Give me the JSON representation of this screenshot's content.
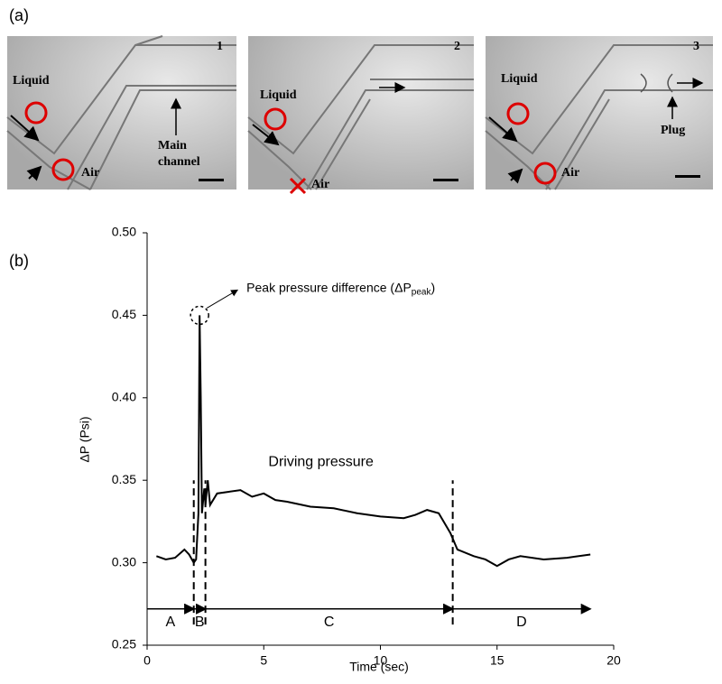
{
  "panel_a": {
    "label": "(a)",
    "images": [
      {
        "number": "1",
        "labels": [
          "Liquid",
          "Air",
          "Main",
          "channel"
        ]
      },
      {
        "number": "2",
        "labels": [
          "Liquid",
          "Air"
        ]
      },
      {
        "number": "3",
        "labels": [
          "Liquid",
          "Air",
          "Plug"
        ]
      }
    ]
  },
  "chart_data": {
    "type": "line",
    "panel_label": "(b)",
    "xlabel": "Time (sec)",
    "ylabel": "ΔP (Psi)",
    "xlim": [
      0,
      20
    ],
    "ylim": [
      0.25,
      0.5
    ],
    "xticks": [
      0,
      5,
      10,
      15,
      20
    ],
    "yticks": [
      0.25,
      {
        "value": 0.3,
        "label": "0.30"
      },
      0.35,
      {
        "value": 0.4,
        "label": "0.40"
      },
      0.45,
      {
        "value": 0.5,
        "label": "0.50"
      }
    ],
    "color": "#000000",
    "x": [
      0.4,
      0.8,
      1.2,
      1.6,
      1.8,
      2.0,
      2.1,
      2.2,
      2.25,
      2.3,
      2.35,
      2.45,
      2.5,
      2.6,
      2.7,
      3,
      3.5,
      4,
      4.5,
      5,
      5.5,
      6,
      7,
      8,
      9,
      10,
      11,
      11.5,
      12,
      12.5,
      13,
      13.3,
      14,
      14.5,
      15,
      15.5,
      16,
      17,
      18,
      19
    ],
    "values": [
      0.304,
      0.302,
      0.303,
      0.308,
      0.305,
      0.3,
      0.302,
      0.33,
      0.45,
      0.4,
      0.33,
      0.345,
      0.335,
      0.35,
      0.335,
      0.342,
      0.343,
      0.344,
      0.34,
      0.342,
      0.338,
      0.337,
      0.334,
      0.333,
      0.33,
      0.328,
      0.327,
      0.329,
      0.332,
      0.33,
      0.318,
      0.308,
      0.304,
      0.302,
      0.298,
      0.302,
      0.304,
      0.302,
      0.303,
      0.305
    ],
    "phase_boundaries": [
      2.0,
      2.5,
      13.1
    ],
    "phases": [
      {
        "label": "A",
        "start": 0,
        "end": 2.0
      },
      {
        "label": "B",
        "start": 2.0,
        "end": 2.5
      },
      {
        "label": "C",
        "start": 2.5,
        "end": 13.1
      },
      {
        "label": "D",
        "start": 13.1,
        "end": 19
      }
    ],
    "annotations": [
      {
        "text": "Peak pressure difference (ΔP",
        "sub": "peak",
        "suffix": ")",
        "x": 2.25,
        "y": 0.45
      },
      {
        "text": "Driving pressure",
        "x": 5.2,
        "y": 0.361
      }
    ]
  }
}
